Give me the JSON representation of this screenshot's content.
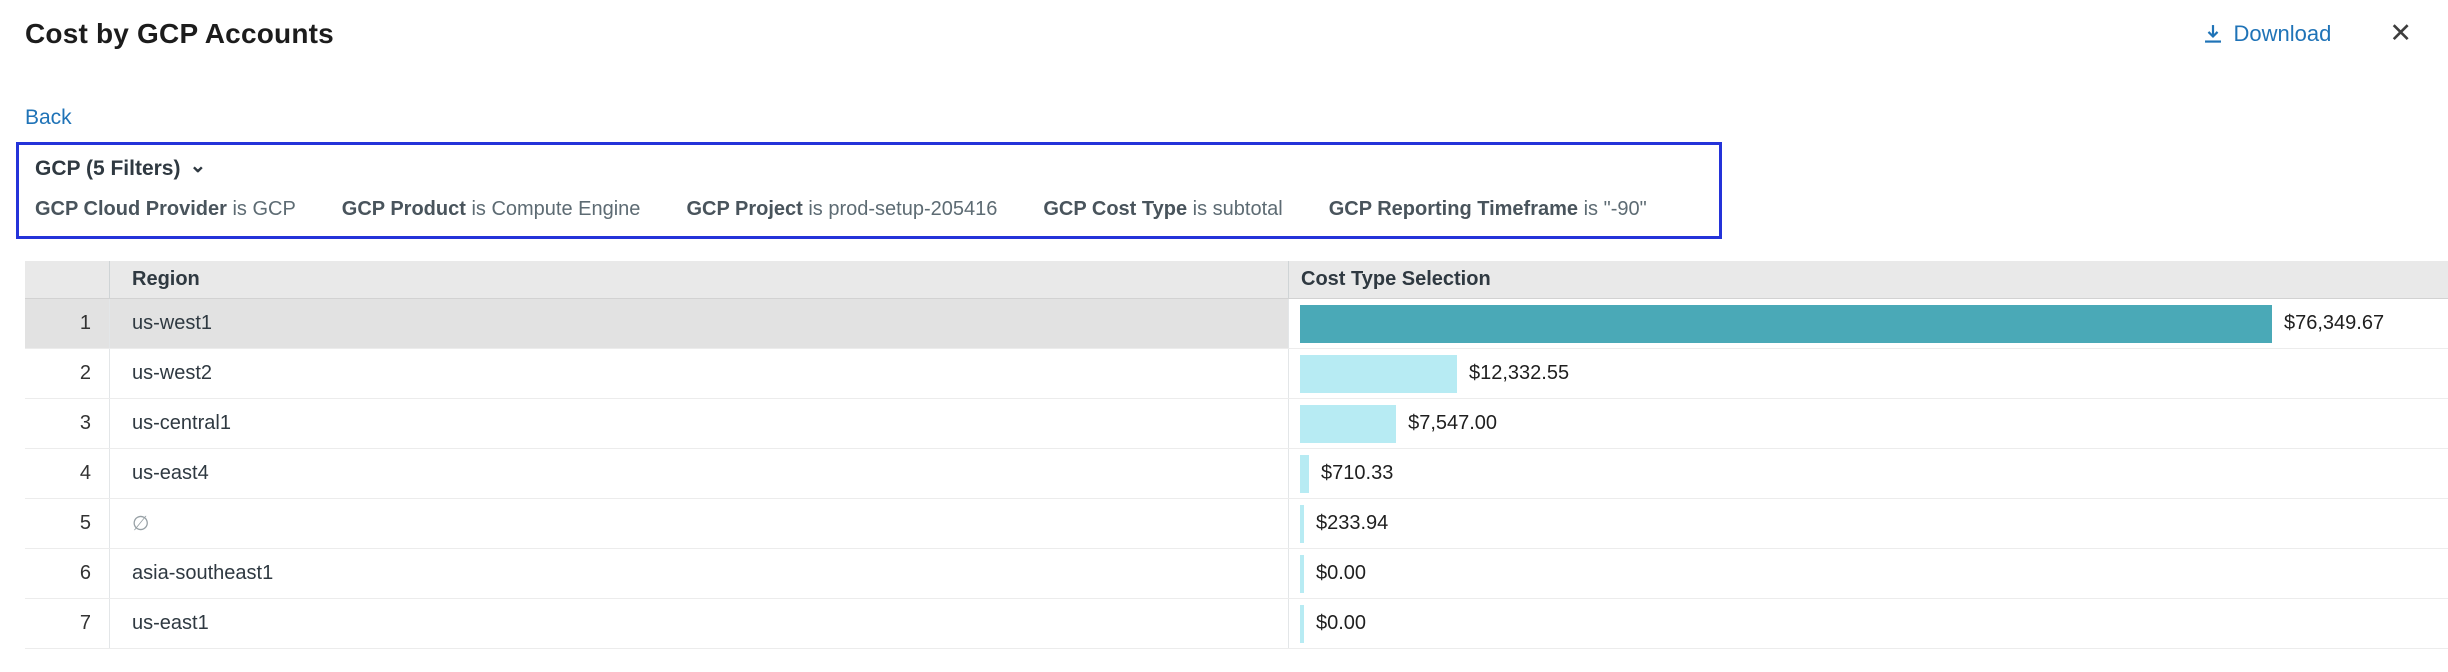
{
  "colors": {
    "accent": "#1f73b7",
    "filter-border": "#2433d9",
    "bar": "#b7ebf3",
    "bar-selected": "#4aa9b7"
  },
  "header": {
    "title": "Cost by GCP Accounts",
    "download_label": "Download",
    "close_label": "✕"
  },
  "nav": {
    "back_label": "Back"
  },
  "filters": {
    "summary": "GCP (5 Filters)",
    "chevron": "⌄",
    "items": [
      {
        "field": "GCP Cloud Provider",
        "rest": "is GCP"
      },
      {
        "field": "GCP Product",
        "rest": "is Compute Engine"
      },
      {
        "field": "GCP Project",
        "rest": "is prod-setup-205416"
      },
      {
        "field": "GCP Cost Type",
        "rest": "is subtotal"
      },
      {
        "field": "GCP Reporting Timeframe",
        "rest": "is \"-90\""
      }
    ]
  },
  "table": {
    "headers": {
      "index": "",
      "region": "Region",
      "cost": "Cost Type Selection"
    },
    "rows": [
      {
        "index": "1",
        "region": "us-west1",
        "value": 76349.67,
        "label": "$76,349.67",
        "selected": true,
        "is_null": false
      },
      {
        "index": "2",
        "region": "us-west2",
        "value": 12332.55,
        "label": "$12,332.55",
        "selected": false,
        "is_null": false
      },
      {
        "index": "3",
        "region": "us-central1",
        "value": 7547.0,
        "label": "$7,547.00",
        "selected": false,
        "is_null": false
      },
      {
        "index": "4",
        "region": "us-east4",
        "value": 710.33,
        "label": "$710.33",
        "selected": false,
        "is_null": false
      },
      {
        "index": "5",
        "region": "∅",
        "value": 233.94,
        "label": "$233.94",
        "selected": false,
        "is_null": true
      },
      {
        "index": "6",
        "region": "asia-southeast1",
        "value": 0.0,
        "label": "$0.00",
        "selected": false,
        "is_null": false
      },
      {
        "index": "7",
        "region": "us-east1",
        "value": 0.0,
        "label": "$0.00",
        "selected": false,
        "is_null": false
      }
    ]
  },
  "chart_data": {
    "type": "bar",
    "orientation": "horizontal",
    "title": "Cost by GCP Accounts",
    "series_label": "Cost Type Selection",
    "categories": [
      "us-west1",
      "us-west2",
      "us-central1",
      "us-east4",
      "∅",
      "asia-southeast1",
      "us-east1"
    ],
    "values": [
      76349.67,
      12332.55,
      7547.0,
      710.33,
      233.94,
      0.0,
      0.0
    ],
    "value_labels": [
      "$76,349.67",
      "$12,332.55",
      "$7,547.00",
      "$710.33",
      "$233.94",
      "$0.00",
      "$0.00"
    ],
    "xlim": [
      0,
      76349.67
    ],
    "grid": false,
    "legend": "none"
  }
}
